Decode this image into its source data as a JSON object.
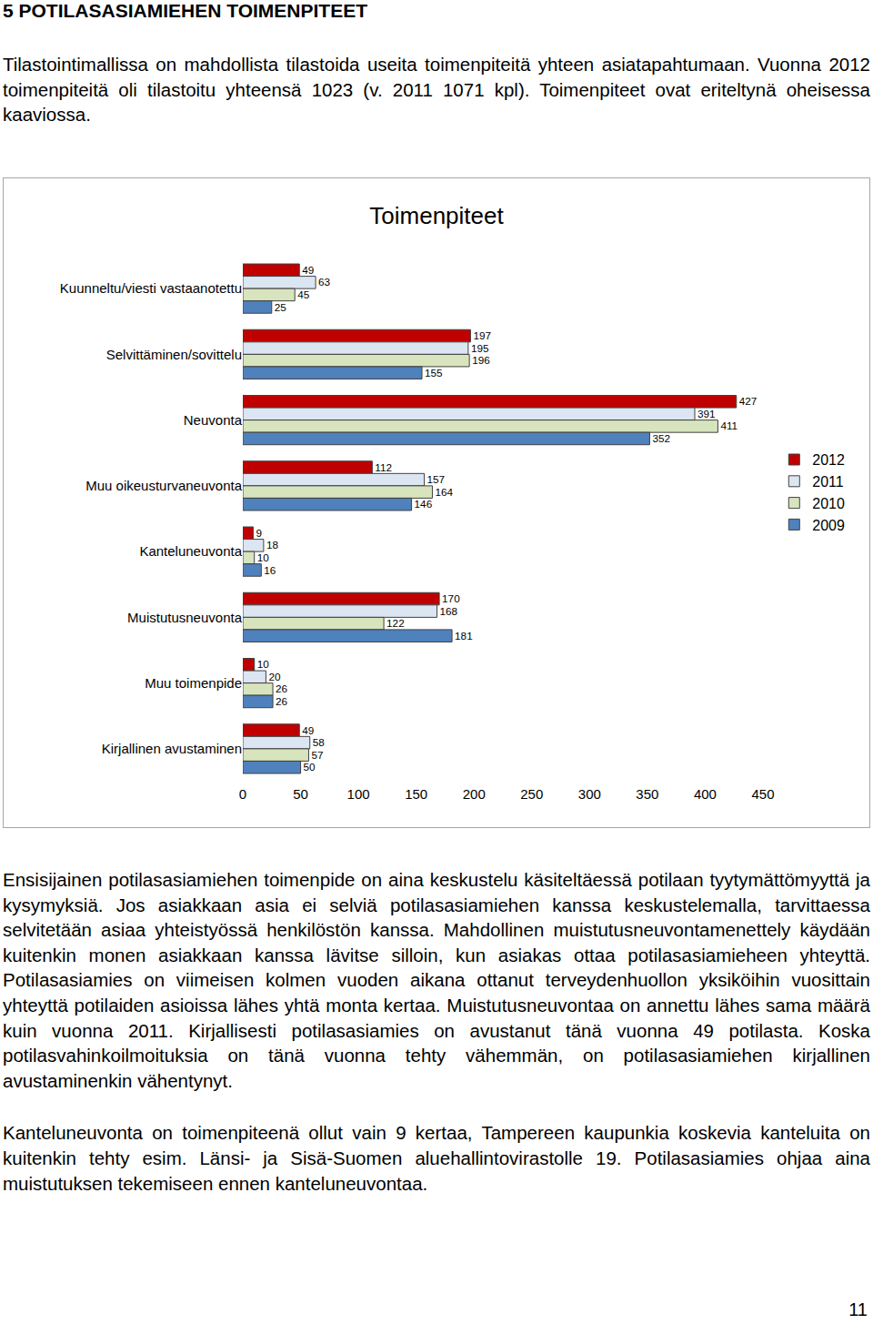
{
  "document": {
    "heading": "5 POTILASASIAMIEHEN TOIMENPITEET",
    "paragraphs_before": [
      "Tilastointimallissa on mahdollista tilastoida useita toimenpiteitä yhteen asiatapahtumaan. Vuonna 2012 toimenpiteitä oli tilastoitu yhteensä 1023 (v. 2011 1071 kpl). Toimenpiteet ovat eriteltynä oheisessa kaaviossa."
    ],
    "paragraphs_after": [
      "Ensisijainen potilasasiamiehen toimenpide on aina keskustelu käsiteltäessä potilaan tyytymättömyyttä ja kysymyksiä. Jos asiakkaan asia ei selviä potilasasiamiehen kanssa keskustelemalla, tarvittaessa selvitetään asiaa yhteistyössä henkilöstön kanssa. Mahdollinen muistutusneuvontamenettely käydään kuitenkin monen asiakkaan kanssa lävitse silloin, kun asiakas ottaa potilasasiamieheen yhteyttä. Potilasasiamies on viimeisen kolmen vuoden aikana ottanut terveydenhuollon yksiköihin vuosittain yhteyttä potilaiden asioissa lähes yhtä monta kertaa. Muistutusneuvontaa on annettu lähes sama määrä kuin vuonna 2011. Kirjallisesti potilasasiamies on avustanut tänä vuonna 49 potilasta. Koska potilasvahinkoilmoituksia on tänä vuonna tehty vähemmän, on potilasasiamiehen kirjallinen avustaminenkin vähentynyt.",
      "Kanteluneuvonta on toimenpiteenä ollut vain 9 kertaa, Tampereen kaupunkia koskevia kanteluita on kuitenkin tehty esim. Länsi- ja Sisä-Suomen aluehallintovirastolle 19. Potilasasiamies ohjaa aina muistutuksen tekemiseen ennen kanteluneuvontaa."
    ],
    "page_number": "11"
  },
  "chart_data": {
    "type": "bar",
    "title": "Toimenpiteet",
    "orientation": "horizontal",
    "categories": [
      "Kuunneltu/viesti vastaanotettu",
      "Selvittäminen/sovittelu",
      "Neuvonta",
      "Muu oikeusturvaneuvonta",
      "Kanteluneuvonta",
      "Muistutusneuvonta",
      "Muu toimenpide",
      "Kirjallinen avustaminen"
    ],
    "series": [
      {
        "name": "2012",
        "color": "#c00000",
        "values": [
          49,
          197,
          427,
          112,
          9,
          170,
          10,
          49
        ]
      },
      {
        "name": "2011",
        "color": "#dce6f2",
        "values": [
          63,
          195,
          391,
          157,
          18,
          168,
          20,
          58
        ]
      },
      {
        "name": "2010",
        "color": "#d7e4bd",
        "values": [
          45,
          196,
          411,
          164,
          10,
          122,
          26,
          57
        ]
      },
      {
        "name": "2009",
        "color": "#4f81bd",
        "values": [
          25,
          155,
          352,
          146,
          16,
          181,
          26,
          50
        ]
      }
    ],
    "xlim": [
      0,
      450
    ],
    "xticks": [
      0,
      50,
      100,
      150,
      200,
      250,
      300,
      350,
      400,
      450
    ],
    "grid": false,
    "legend": "right",
    "data_labels": true
  }
}
